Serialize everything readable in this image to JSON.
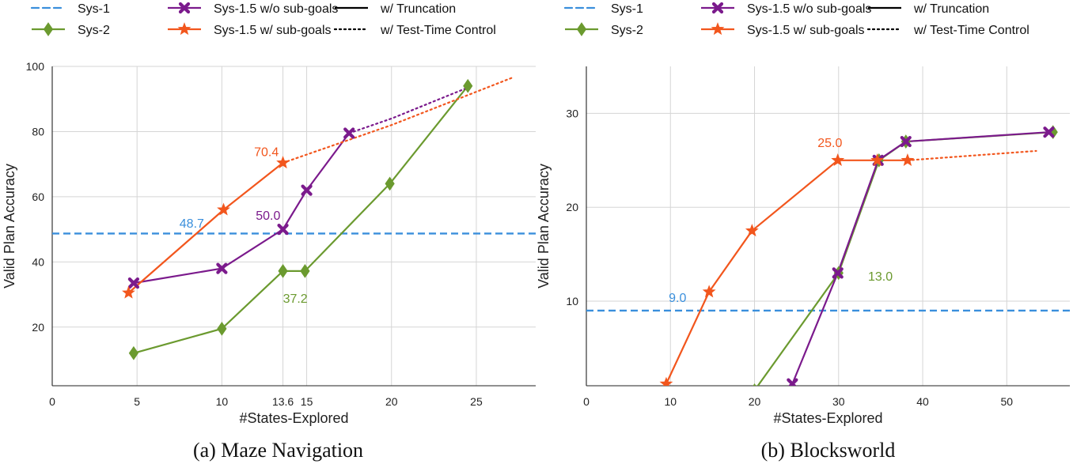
{
  "legend": {
    "series": [
      {
        "label": "Sys-1",
        "color": "#3a8fdc",
        "style": "dashed",
        "marker": "none"
      },
      {
        "label": "Sys-2",
        "color": "#6b9a2f",
        "style": "solid",
        "marker": "diamond"
      },
      {
        "label": "Sys-1.5 w/o sub-goals",
        "color": "#7b1a8c",
        "style": "solid",
        "marker": "x"
      },
      {
        "label": "Sys-1.5 w/ sub-goals",
        "color": "#f2561d",
        "style": "solid",
        "marker": "star"
      }
    ],
    "styles": [
      {
        "label": "w/ Truncation",
        "style": "solid"
      },
      {
        "label": "w/ Test-Time Control",
        "style": "dotted"
      }
    ]
  },
  "chart_data": [
    {
      "type": "line",
      "title": "(a)  Maze Navigation",
      "xlabel": "#States-Explored",
      "ylabel": "Valid Plan Accuracy",
      "xlim": [
        0,
        28.5
      ],
      "ylim": [
        2,
        100
      ],
      "xticks": [
        0,
        5,
        10,
        13.6,
        15,
        20,
        25
      ],
      "xtick_labels": [
        "0",
        "5",
        "10",
        "13.6",
        "15",
        "20",
        "25"
      ],
      "yticks": [
        20,
        40,
        60,
        80,
        100
      ],
      "ytick_labels": [
        "20",
        "40",
        "60",
        "80",
        "100"
      ],
      "series": [
        {
          "name": "Sys-1",
          "color": "#3a8fdc",
          "style": "hline",
          "y": 48.7
        },
        {
          "name": "Sys-2",
          "color": "#6b9a2f",
          "marker": "diamond",
          "x": [
            4.8,
            10.0,
            13.6,
            14.9,
            19.9,
            24.5
          ],
          "y": [
            12,
            19.5,
            37.2,
            37.2,
            64,
            94
          ]
        },
        {
          "name": "Sys-1.5 w/o sub-goals",
          "color": "#7b1a8c",
          "marker": "x",
          "x": [
            4.8,
            10.0,
            13.6,
            15.0,
            17.5
          ],
          "y": [
            33.5,
            38,
            50.0,
            62,
            79.5
          ]
        },
        {
          "name": "Sys-1.5 w/ sub-goals",
          "color": "#f2561d",
          "marker": "star",
          "x": [
            4.5,
            10.1,
            13.6
          ],
          "y": [
            30.5,
            56,
            70.4
          ]
        },
        {
          "name": "Sys-1.5 w/o sub-goals (test-time control)",
          "color": "#7b1a8c",
          "style": "dotted",
          "x": [
            17.5,
            20.0,
            24.5
          ],
          "y": [
            79.5,
            84,
            93.5
          ]
        },
        {
          "name": "Sys-1.5 w/ sub-goals (test-time control)",
          "color": "#f2561d",
          "style": "dotted",
          "x": [
            13.6,
            20.0,
            27.1
          ],
          "y": [
            70.4,
            82,
            96.5
          ]
        }
      ],
      "annotations": [
        {
          "text": "48.7",
          "color": "#3a8fdc",
          "x": 7.5,
          "y": 50.5
        },
        {
          "text": "70.4",
          "color": "#f2561d",
          "x": 11.9,
          "y": 72.5
        },
        {
          "text": "50.0",
          "color": "#7b1a8c",
          "x": 12.0,
          "y": 53.0
        },
        {
          "text": "37.2",
          "color": "#6b9a2f",
          "x": 13.6,
          "y": 27.5
        }
      ]
    },
    {
      "type": "line",
      "title": "(b)  Blocksworld",
      "xlabel": "#States-Explored",
      "ylabel": "Valid Plan Accuracy",
      "xlim": [
        0,
        57.5
      ],
      "ylim": [
        1,
        35
      ],
      "xticks": [
        0,
        10,
        20,
        30,
        40,
        50
      ],
      "xtick_labels": [
        "0",
        "10",
        "20",
        "30",
        "40",
        "50"
      ],
      "yticks": [
        10,
        20,
        30
      ],
      "ytick_labels": [
        "10",
        "20",
        "30"
      ],
      "series": [
        {
          "name": "Sys-1",
          "color": "#3a8fdc",
          "style": "hline",
          "y": 9.0
        },
        {
          "name": "Sys-2",
          "color": "#6b9a2f",
          "marker": "diamond",
          "x": [
            20.0,
            30.0,
            34.8,
            38.0,
            55.5
          ],
          "y": [
            0.5,
            13.0,
            25,
            27,
            28
          ]
        },
        {
          "name": "Sys-1.5 w/o sub-goals",
          "color": "#7b1a8c",
          "marker": "x",
          "x": [
            24.5,
            29.9,
            34.7,
            38.0,
            55.0
          ],
          "y": [
            1.2,
            13.0,
            25,
            27,
            28
          ]
        },
        {
          "name": "Sys-1.5 w/ sub-goals",
          "color": "#f2561d",
          "marker": "star",
          "x": [
            9.5,
            14.6,
            19.7,
            29.9,
            34.6,
            38.2
          ],
          "y": [
            1.2,
            11,
            17.5,
            25.0,
            25,
            25
          ]
        },
        {
          "name": "Sys-1.5 w/ sub-goals (test-time control)",
          "color": "#f2561d",
          "style": "dotted",
          "x": [
            38.2,
            53.5
          ],
          "y": [
            25,
            26
          ]
        }
      ],
      "annotations": [
        {
          "text": "9.0",
          "color": "#3a8fdc",
          "x": 9.8,
          "y": 9.9
        },
        {
          "text": "25.0",
          "color": "#f2561d",
          "x": 27.5,
          "y": 26.4
        },
        {
          "text": "13.0",
          "color": "#6b9a2f",
          "x": 33.5,
          "y": 12.2
        }
      ]
    }
  ]
}
